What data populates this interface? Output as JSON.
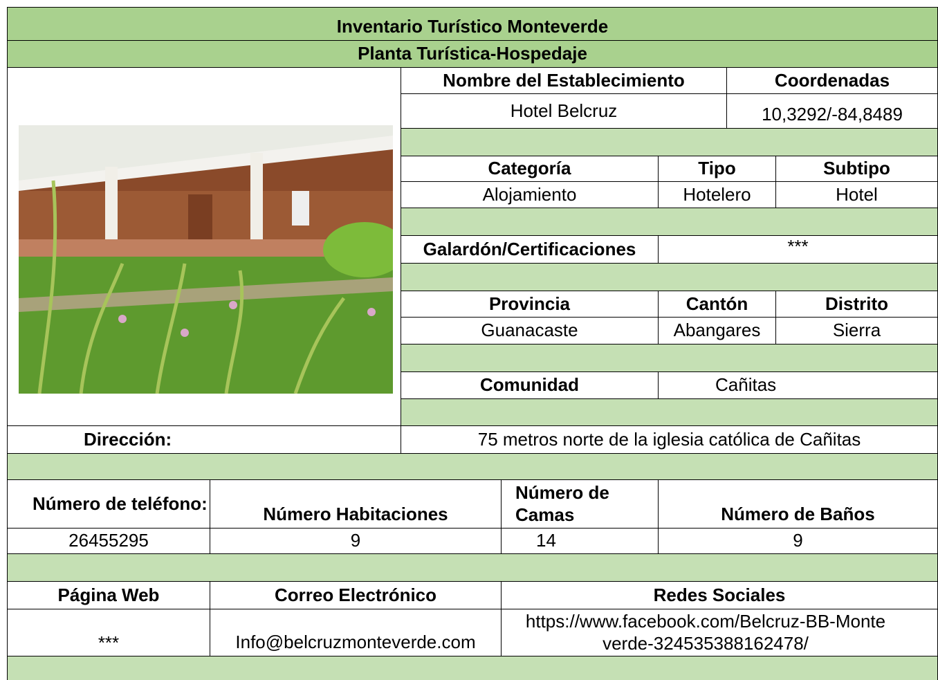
{
  "header": {
    "title": "Inventario Turístico Monteverde",
    "subtitle": "Planta Turística-Hospedaje"
  },
  "establishment": {
    "name_label": "Nombre del Establecimiento",
    "name": "Hotel Belcruz",
    "coordinates_label": "Coordenadas",
    "coordinates": "10,3292/-84,8489"
  },
  "classification": {
    "labels": [
      "Categoría",
      "Tipo",
      "Subtipo"
    ],
    "values": [
      "Alojamiento",
      "Hotelero",
      "Hotel"
    ]
  },
  "awards": {
    "label": "Galardón/Certificaciones",
    "value": "***"
  },
  "location": {
    "labels": [
      "Provincia",
      "Cantón",
      "Distrito"
    ],
    "values": [
      "Guanacaste",
      "Abangares",
      "Sierra"
    ]
  },
  "community": {
    "label": "Comunidad",
    "value": "Cañitas"
  },
  "address": {
    "label": "Dirección:",
    "value": "75 metros norte de la iglesia católica de Cañitas"
  },
  "capacity": {
    "labels": [
      "Número de teléfono:",
      "Número Habitaciones",
      "Número de Camas",
      "Número de Baños"
    ],
    "values": [
      "26455295",
      "9",
      "14",
      "9"
    ]
  },
  "contact": {
    "labels": [
      "Página Web",
      "Correo Electrónico",
      "Redes Sociales"
    ],
    "values": [
      "***",
      "Info@belcruzmonteverde.com",
      "https://www.facebook.com/Belcruz-BB-Monteverde-324535388162478/"
    ]
  }
}
